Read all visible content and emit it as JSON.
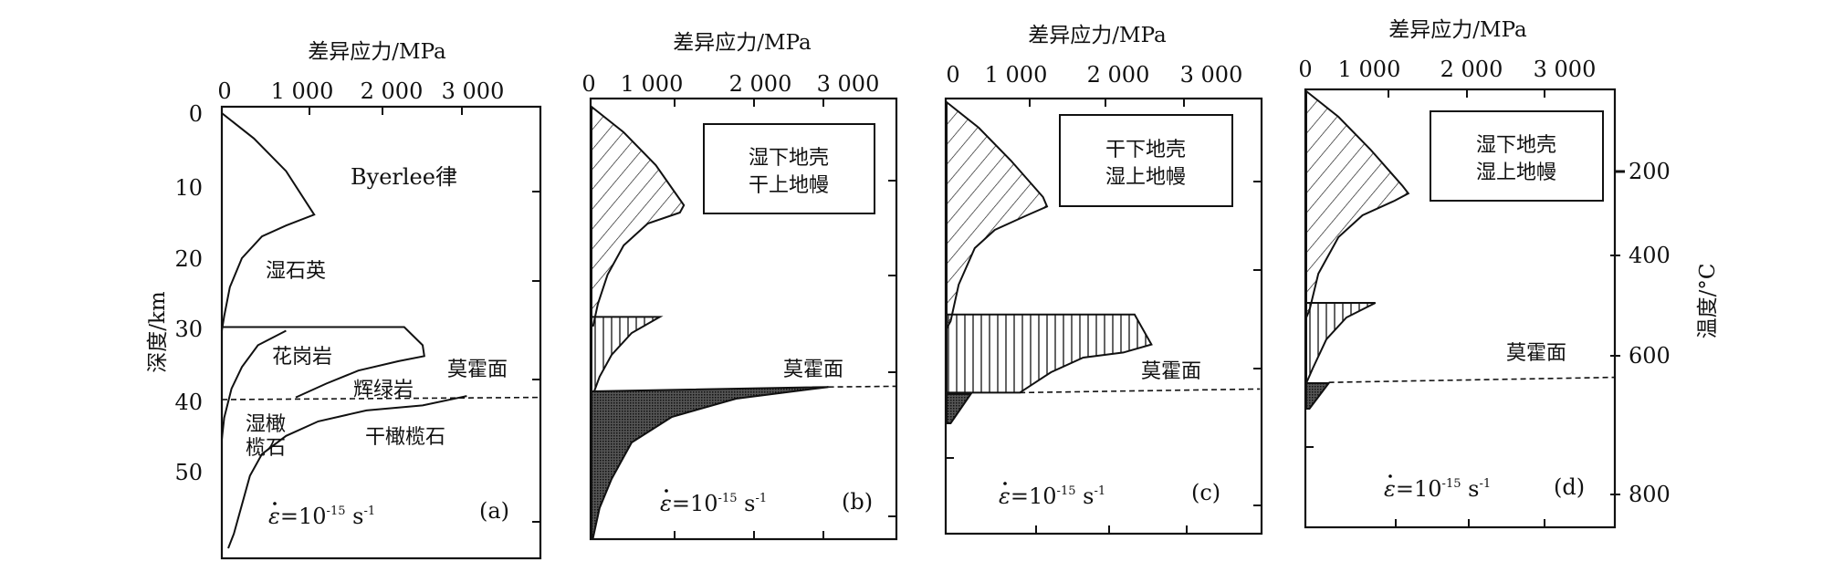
{
  "figure": {
    "x_axis_title": "差异应力/MPa",
    "y_axis_title": "深度/km",
    "temp_axis_title": "温度/°C",
    "moho_label": "莫霍面",
    "strain_rate": {
      "symbol": "ε",
      "base": "=10",
      "exp": "-15",
      "unit": " s",
      "unit_exp": "-1"
    },
    "temp_ticks": [
      "200",
      "400",
      "600",
      "800"
    ]
  },
  "chart_data": [
    {
      "panel": "(a)",
      "type": "line",
      "xlabel": "差异应力/MPa",
      "ylabel": "深度/km",
      "xlim": [
        0,
        3900
      ],
      "ylim": [
        60,
        0
      ],
      "x_ticks": [
        "0",
        "1 000",
        "2 000",
        "3 000"
      ],
      "y_ticks": [
        "0",
        "10",
        "20",
        "30",
        "40",
        "50"
      ],
      "labels": {
        "byerlee": "Byerlee律",
        "wet_quartz": "湿石英",
        "granite": "花岗岩",
        "diabase": "辉绿岩",
        "wet_olivine_1": "湿橄",
        "wet_olivine_2": "榄石",
        "dry_olivine": "干橄榄石"
      },
      "series": [
        {
          "name": "byerlee-wet-quartz",
          "style": "line",
          "points": [
            [
              0,
              0
            ],
            [
              400,
              3.5
            ],
            [
              800,
              8
            ],
            [
              1150,
              14
            ],
            [
              800,
              15.5
            ],
            [
              500,
              17
            ],
            [
              250,
              20
            ],
            [
              100,
              24
            ],
            [
              30,
              28
            ],
            [
              0,
              30
            ]
          ]
        },
        {
          "name": "granite-diabase",
          "style": "line",
          "points": [
            [
              0,
              29.5
            ],
            [
              2270,
              29.5
            ],
            [
              2500,
              32
            ],
            [
              2520,
              33.5
            ],
            [
              2200,
              34.2
            ],
            [
              1700,
              35.5
            ],
            [
              1300,
              37.3
            ],
            [
              920,
              39.2
            ]
          ]
        },
        {
          "name": "wet-granite-ductile",
          "style": "line",
          "points": [
            [
              800,
              30
            ],
            [
              450,
              32
            ],
            [
              250,
              35
            ],
            [
              120,
              38
            ],
            [
              30,
              42
            ],
            [
              0,
              45
            ]
          ]
        },
        {
          "name": "dry-olivine",
          "style": "line",
          "points": [
            [
              3050,
              39
            ],
            [
              2500,
              40.3
            ],
            [
              1800,
              41
            ],
            [
              1200,
              42.5
            ],
            [
              800,
              44.5
            ],
            [
              500,
              47
            ],
            [
              350,
              50
            ],
            [
              250,
              54
            ],
            [
              150,
              58
            ],
            [
              80,
              60
            ]
          ]
        },
        {
          "name": "moho",
          "style": "dash",
          "points": [
            [
              0,
              39.5
            ],
            [
              3960,
              39.2
            ]
          ]
        }
      ]
    },
    {
      "panel": "(b)",
      "type": "area",
      "xlabel": "差异应力/MPa",
      "xlim": [
        0,
        3800
      ],
      "x_ticks": [
        "0",
        "1 000",
        "2 000",
        "3 000"
      ],
      "box_text": [
        "湿下地壳",
        "干上地幔"
      ],
      "series": [
        {
          "name": "upper-crust-diagonal-hatch",
          "style": "diag",
          "points": [
            [
              0,
              0
            ],
            [
              400,
              3.5
            ],
            [
              800,
              8
            ],
            [
              1150,
              13.5
            ],
            [
              1100,
              14.5
            ],
            [
              700,
              16
            ],
            [
              400,
              19
            ],
            [
              200,
              23
            ],
            [
              80,
              27
            ],
            [
              20,
              30
            ],
            [
              0,
              30
            ]
          ]
        },
        {
          "name": "lower-crust-vertical-hatch",
          "style": "vert",
          "points": [
            [
              0,
              28.8
            ],
            [
              850,
              28.8
            ],
            [
              500,
              31
            ],
            [
              250,
              34
            ],
            [
              100,
              37
            ],
            [
              0,
              40
            ]
          ]
        },
        {
          "name": "upper-mantle-dark",
          "style": "dark",
          "points": [
            [
              0,
              39
            ],
            [
              2950,
              38.4
            ],
            [
              1800,
              40
            ],
            [
              1000,
              42.5
            ],
            [
              500,
              46
            ],
            [
              250,
              51
            ],
            [
              100,
              55
            ],
            [
              20,
              59
            ],
            [
              0,
              59
            ]
          ]
        },
        {
          "name": "moho",
          "style": "dash",
          "points": [
            [
              2950,
              38.4
            ],
            [
              3795,
              38.3
            ]
          ]
        }
      ]
    },
    {
      "panel": "(c)",
      "type": "area",
      "xlabel": "差异应力/MPa",
      "xlim": [
        0,
        3900
      ],
      "x_ticks": [
        "0",
        "1 000",
        "2 000",
        "3 000"
      ],
      "box_text": [
        "干下地壳",
        "湿上地幔"
      ],
      "series": [
        {
          "name": "upper-crust-diagonal-hatch",
          "style": "diag",
          "points": [
            [
              0,
              0
            ],
            [
              400,
              3.5
            ],
            [
              800,
              8
            ],
            [
              1200,
              13
            ],
            [
              1250,
              14.3
            ],
            [
              1000,
              15.5
            ],
            [
              600,
              17.5
            ],
            [
              350,
              20
            ],
            [
              150,
              25
            ],
            [
              50,
              30
            ],
            [
              0,
              31
            ]
          ]
        },
        {
          "name": "lower-crust-vertical-hatch",
          "style": "vert",
          "points": [
            [
              0,
              29.1
            ],
            [
              2340,
              29.1
            ],
            [
              2550,
              33.2
            ],
            [
              2200,
              34.3
            ],
            [
              1700,
              35
            ],
            [
              1300,
              37
            ],
            [
              910,
              39.8
            ],
            [
              0,
              39.8
            ]
          ]
        },
        {
          "name": "upper-mantle-dark",
          "style": "dark",
          "points": [
            [
              0,
              40
            ],
            [
              300,
              40
            ],
            [
              50,
              44
            ],
            [
              0,
              44
            ]
          ]
        },
        {
          "name": "moho",
          "style": "dash",
          "points": [
            [
              910,
              39.8
            ],
            [
              3900,
              39.3
            ]
          ]
        }
      ]
    },
    {
      "panel": "(d)",
      "type": "area",
      "xlabel": "差异应力/MPa",
      "xlim": [
        0,
        3850
      ],
      "x_ticks": [
        "0",
        "1 000",
        "2 000",
        "3 000"
      ],
      "box_text": [
        "湿下地壳",
        "湿上地幔"
      ],
      "series": [
        {
          "name": "upper-crust-diagonal-hatch",
          "style": "diag",
          "points": [
            [
              0,
              0
            ],
            [
              400,
              3.5
            ],
            [
              800,
              8
            ],
            [
              1200,
              13
            ],
            [
              1270,
              14
            ],
            [
              1100,
              15
            ],
            [
              700,
              17
            ],
            [
              400,
              20
            ],
            [
              150,
              25
            ],
            [
              40,
              30
            ],
            [
              0,
              31
            ]
          ]
        },
        {
          "name": "lower-crust-vertical-hatch",
          "style": "vert",
          "points": [
            [
              0,
              29
            ],
            [
              860,
              29
            ],
            [
              500,
              31
            ],
            [
              250,
              34
            ],
            [
              80,
              38
            ],
            [
              0,
              40
            ]
          ]
        },
        {
          "name": "upper-mantle-dark",
          "style": "dark",
          "points": [
            [
              0,
              40
            ],
            [
              280,
              40
            ],
            [
              40,
              43.5
            ],
            [
              0,
              43.5
            ]
          ]
        },
        {
          "name": "moho",
          "style": "dash",
          "points": [
            [
              280,
              39.9
            ],
            [
              3840,
              39.2
            ]
          ]
        }
      ]
    }
  ]
}
